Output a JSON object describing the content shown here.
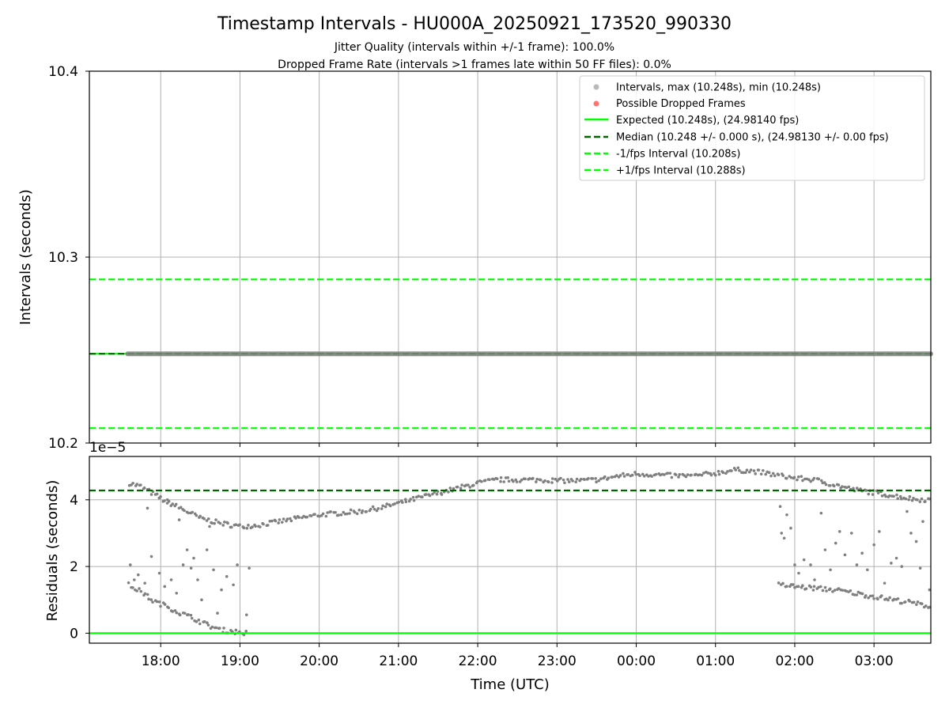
{
  "title": "Timestamp Intervals - HU000A_20250921_173520_990330",
  "subtitle_lines": [
    "Jitter Quality (intervals within +/-1 frame): 100.0%",
    "Dropped Frame Rate (intervals >1 frames late within 50 FF files): 0.0%"
  ],
  "colors": {
    "points": "#808080",
    "dropped": "#ff0000",
    "expected": "#00ff00",
    "median": "#006400",
    "fps_bounds": "#00ff00",
    "grid": "#b0b0b0"
  },
  "chart_data": [
    {
      "type": "scatter",
      "panel": "intervals",
      "ylabel": "Intervals (seconds)",
      "ylim": [
        10.2,
        10.4
      ],
      "yticks": [
        10.2,
        10.3,
        10.4
      ],
      "ytick_labels": [
        "10.2",
        "10.3",
        "10.4"
      ],
      "xlim": [
        "17:06",
        "03:43"
      ],
      "grid": true,
      "legend_position": "upper right",
      "legend": [
        {
          "label": "Intervals, max (10.248s), min (10.248s)",
          "kind": "marker",
          "color": "#808080"
        },
        {
          "label": "Possible Dropped Frames",
          "kind": "marker",
          "color": "#ff0000"
        },
        {
          "label": "Expected (10.248s), (24.98140 fps)",
          "kind": "solid",
          "color": "#00ff00"
        },
        {
          "label": "Median (10.248 +/- 0.000 s), (24.98130 +/- 0.00 fps)",
          "kind": "dashed",
          "color": "#006400"
        },
        {
          "label": "-1/fps Interval (10.208s)",
          "kind": "dashed",
          "color": "#00ff00"
        },
        {
          "label": "+1/fps Interval (10.288s)",
          "kind": "dashed",
          "color": "#00ff00"
        }
      ],
      "series": [
        {
          "name": "Intervals",
          "x_range": [
            "17:35",
            "03:43"
          ],
          "y": 10.248
        },
        {
          "name": "Expected",
          "y": 10.248
        },
        {
          "name": "Median",
          "y": 10.248
        },
        {
          "name": "-1/fps Interval",
          "y": 10.208
        },
        {
          "name": "+1/fps Interval",
          "y": 10.288
        }
      ],
      "dropped_frames": []
    },
    {
      "type": "scatter",
      "panel": "residuals",
      "ylabel": "Residuals (seconds)",
      "xlabel": "Time (UTC)",
      "offset_text": "1e−5",
      "ylim": [
        -0.3,
        5.3
      ],
      "yticks": [
        0,
        2,
        4
      ],
      "ytick_labels": [
        "0",
        "2",
        "4"
      ],
      "xlim": [
        "17:06",
        "03:43"
      ],
      "xticks": [
        "18:00",
        "19:00",
        "20:00",
        "21:00",
        "22:00",
        "23:00",
        "00:00",
        "01:00",
        "02:00",
        "03:00"
      ],
      "xtick_labels": [
        "18:00",
        "19:00",
        "20:00",
        "21:00",
        "22:00",
        "23:00",
        "00:00",
        "01:00",
        "02:00",
        "03:00"
      ],
      "grid": true,
      "reference_lines": [
        {
          "name": "Expected",
          "y": 0
        },
        {
          "name": "Median",
          "y": 4.28
        }
      ],
      "main_band": [
        [
          "17:36",
          4.5
        ],
        [
          "17:45",
          4.4
        ],
        [
          "18:02",
          4.0
        ],
        [
          "18:15",
          3.75
        ],
        [
          "18:30",
          3.45
        ],
        [
          "18:45",
          3.3
        ],
        [
          "19:00",
          3.2
        ],
        [
          "19:15",
          3.25
        ],
        [
          "19:30",
          3.35
        ],
        [
          "19:45",
          3.45
        ],
        [
          "20:00",
          3.55
        ],
        [
          "20:15",
          3.6
        ],
        [
          "20:30",
          3.65
        ],
        [
          "20:45",
          3.75
        ],
        [
          "21:00",
          3.9
        ],
        [
          "21:15",
          4.05
        ],
        [
          "21:30",
          4.2
        ],
        [
          "21:45",
          4.35
        ],
        [
          "22:00",
          4.5
        ],
        [
          "22:15",
          4.6
        ],
        [
          "22:30",
          4.6
        ],
        [
          "22:45",
          4.6
        ],
        [
          "23:00",
          4.58
        ],
        [
          "23:15",
          4.57
        ],
        [
          "23:30",
          4.6
        ],
        [
          "23:45",
          4.7
        ],
        [
          "00:00",
          4.78
        ],
        [
          "00:15",
          4.75
        ],
        [
          "00:30",
          4.72
        ],
        [
          "00:45",
          4.72
        ],
        [
          "01:00",
          4.8
        ],
        [
          "01:15",
          4.9
        ],
        [
          "01:30",
          4.85
        ],
        [
          "01:45",
          4.75
        ],
        [
          "02:00",
          4.65
        ],
        [
          "02:15",
          4.6
        ],
        [
          "02:30",
          4.45
        ],
        [
          "02:45",
          4.3
        ],
        [
          "03:00",
          4.22
        ],
        [
          "03:15",
          4.12
        ],
        [
          "03:30",
          4.02
        ],
        [
          "03:43",
          4.0
        ]
      ],
      "low_band": [
        [
          "17:36",
          1.45
        ],
        [
          "17:45",
          1.25
        ],
        [
          "17:55",
          0.95
        ],
        [
          "18:05",
          0.8
        ],
        [
          "18:15",
          0.6
        ],
        [
          "18:25",
          0.45
        ],
        [
          "18:35",
          0.25
        ],
        [
          "18:45",
          0.1
        ],
        [
          "18:55",
          0.05
        ],
        [
          "19:05",
          0.0
        ],
        [
          "01:48",
          1.45
        ],
        [
          "02:00",
          1.4
        ],
        [
          "02:15",
          1.35
        ],
        [
          "02:30",
          1.3
        ],
        [
          "02:45",
          1.2
        ],
        [
          "03:00",
          1.1
        ],
        [
          "03:15",
          1.0
        ],
        [
          "03:30",
          0.9
        ],
        [
          "03:43",
          0.8
        ]
      ],
      "scattered_points": [
        [
          "17:37",
          2.05
        ],
        [
          "17:40",
          1.6
        ],
        [
          "17:43",
          1.75
        ],
        [
          "17:48",
          1.5
        ],
        [
          "17:50",
          3.75
        ],
        [
          "17:53",
          2.3
        ],
        [
          "17:59",
          1.8
        ],
        [
          "18:03",
          1.4
        ],
        [
          "18:05",
          3.9
        ],
        [
          "18:08",
          1.6
        ],
        [
          "18:12",
          1.2
        ],
        [
          "18:14",
          3.4
        ],
        [
          "18:17",
          2.05
        ],
        [
          "18:20",
          2.5
        ],
        [
          "18:23",
          1.95
        ],
        [
          "18:25",
          2.25
        ],
        [
          "18:28",
          1.6
        ],
        [
          "18:31",
          1.0
        ],
        [
          "18:35",
          2.5
        ],
        [
          "18:37",
          3.2
        ],
        [
          "18:40",
          1.9
        ],
        [
          "18:43",
          0.6
        ],
        [
          "18:46",
          1.3
        ],
        [
          "18:50",
          1.7
        ],
        [
          "18:55",
          1.45
        ],
        [
          "18:58",
          2.05
        ],
        [
          "19:05",
          0.55
        ],
        [
          "19:07",
          1.95
        ],
        [
          "01:49",
          3.8
        ],
        [
          "01:50",
          3.0
        ],
        [
          "01:52",
          2.85
        ],
        [
          "01:54",
          3.55
        ],
        [
          "01:57",
          3.15
        ],
        [
          "02:00",
          2.05
        ],
        [
          "02:03",
          1.8
        ],
        [
          "02:07",
          2.2
        ],
        [
          "02:12",
          2.05
        ],
        [
          "02:15",
          1.6
        ],
        [
          "02:20",
          3.6
        ],
        [
          "02:23",
          2.5
        ],
        [
          "02:27",
          1.9
        ],
        [
          "02:31",
          2.7
        ],
        [
          "02:34",
          3.05
        ],
        [
          "02:38",
          2.35
        ],
        [
          "02:43",
          3.0
        ],
        [
          "02:47",
          2.05
        ],
        [
          "02:51",
          2.4
        ],
        [
          "02:55",
          1.9
        ],
        [
          "03:00",
          2.65
        ],
        [
          "03:04",
          3.05
        ],
        [
          "03:08",
          1.5
        ],
        [
          "03:13",
          2.1
        ],
        [
          "03:17",
          2.25
        ],
        [
          "03:21",
          2.0
        ],
        [
          "03:25",
          3.65
        ],
        [
          "03:28",
          3.0
        ],
        [
          "03:32",
          2.75
        ],
        [
          "03:35",
          1.95
        ],
        [
          "03:37",
          3.35
        ],
        [
          "03:42",
          1.3
        ]
      ]
    }
  ]
}
